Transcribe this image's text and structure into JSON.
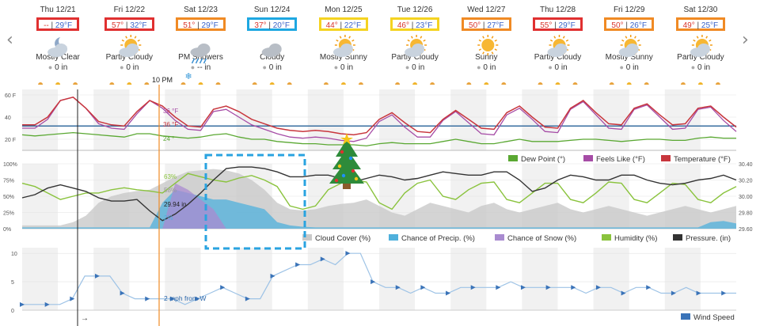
{
  "nav": {
    "prev_arrow": "‹",
    "next_arrow": "›"
  },
  "current_time_label": "10 PM",
  "days": [
    {
      "date": "Thu 12/21",
      "hi": "--",
      "lo": "29°F",
      "condition": "Mostly Clear",
      "precip": "0 in",
      "icon": "moon-cloud-icon",
      "box": "#e03030"
    },
    {
      "date": "Fri 12/22",
      "hi": "57°",
      "lo": "32°F",
      "condition": "Partly Cloudy",
      "precip": "0 in",
      "icon": "sun-cloud-icon",
      "box": "#e03030"
    },
    {
      "date": "Sat 12/23",
      "hi": "51°",
      "lo": "29°F",
      "condition": "PM Showers",
      "precip": "-- in",
      "icon": "rain-cloud-icon",
      "box": "#f08a24"
    },
    {
      "date": "Sun 12/24",
      "hi": "37°",
      "lo": "20°F",
      "condition": "Cloudy",
      "precip": "0 in",
      "icon": "cloud-icon",
      "box": "#1ea7e1"
    },
    {
      "date": "Mon 12/25",
      "hi": "44°",
      "lo": "22°F",
      "condition": "Mostly Sunny",
      "precip": "0 in",
      "icon": "sun-cloud-icon",
      "box": "#f5d321"
    },
    {
      "date": "Tue 12/26",
      "hi": "46°",
      "lo": "23°F",
      "condition": "Partly Cloudy",
      "precip": "0 in",
      "icon": "sun-cloud-icon",
      "box": "#f5d321"
    },
    {
      "date": "Wed 12/27",
      "hi": "50°",
      "lo": "27°F",
      "condition": "Sunny",
      "precip": "0 in",
      "icon": "sun-icon",
      "box": "#f08a24"
    },
    {
      "date": "Thu 12/28",
      "hi": "55°",
      "lo": "29°F",
      "condition": "Partly Cloudy",
      "precip": "0 in",
      "icon": "sun-cloud-icon",
      "box": "#e03030"
    },
    {
      "date": "Fri 12/29",
      "hi": "50°",
      "lo": "26°F",
      "condition": "Mostly Sunny",
      "precip": "0 in",
      "icon": "sun-cloud-icon",
      "box": "#f08a24"
    },
    {
      "date": "Sat 12/30",
      "hi": "49°",
      "lo": "25°F",
      "condition": "Partly Cloudy",
      "precip": "0 in",
      "icon": "sun-cloud-icon",
      "box": "#f08a24"
    }
  ],
  "chart_data": [
    {
      "type": "line",
      "title": "Temperature panel",
      "ylabel": "°F",
      "ylim": [
        10,
        65
      ],
      "y_ticks": [
        "60 F",
        "40",
        "20 F"
      ],
      "x_hours_total": 240,
      "current_readout": {
        "feels_like": "36 °F",
        "temperature": "36 °F",
        "dew_point": "24 °"
      },
      "legend": [
        "Dew Point (°)",
        "Feels Like (°F)",
        "Temperature (°F)"
      ],
      "colors": {
        "dew": "#5aa832",
        "feels": "#a64ca6",
        "temp": "#c8363d",
        "ref": "#3a6fa0"
      },
      "reference_line": 32,
      "series": [
        {
          "name": "Temperature",
          "values": [
            33,
            33,
            40,
            55,
            58,
            48,
            36,
            33,
            32,
            45,
            55,
            50,
            40,
            32,
            31,
            47,
            50,
            45,
            38,
            34,
            30,
            28,
            27,
            28,
            27,
            25,
            24,
            26,
            38,
            44,
            35,
            27,
            26,
            38,
            46,
            38,
            30,
            29,
            44,
            50,
            40,
            31,
            30,
            48,
            55,
            44,
            34,
            33,
            48,
            52,
            42,
            33,
            34,
            48,
            50,
            40,
            31
          ]
        },
        {
          "name": "Feels Like",
          "values": [
            30,
            30,
            38,
            55,
            58,
            48,
            34,
            30,
            29,
            43,
            55,
            48,
            37,
            29,
            28,
            45,
            47,
            40,
            33,
            29,
            25,
            22,
            21,
            22,
            21,
            19,
            18,
            21,
            36,
            42,
            31,
            22,
            22,
            37,
            45,
            35,
            25,
            24,
            42,
            48,
            38,
            27,
            26,
            47,
            54,
            42,
            30,
            29,
            47,
            51,
            40,
            29,
            30,
            47,
            49,
            37,
            27
          ]
        },
        {
          "name": "Dew Point",
          "values": [
            24,
            23,
            24,
            25,
            26,
            25,
            24,
            23,
            22,
            25,
            25,
            23,
            22,
            21,
            22,
            24,
            25,
            22,
            20,
            20,
            18,
            17,
            16,
            16,
            15,
            15,
            15,
            14,
            16,
            17,
            16,
            16,
            16,
            18,
            20,
            18,
            16,
            16,
            18,
            20,
            18,
            18,
            18,
            19,
            20,
            20,
            19,
            18,
            19,
            20,
            20,
            19,
            19,
            21,
            22,
            21,
            21
          ]
        }
      ]
    },
    {
      "type": "area",
      "title": "Cloud / Precip / Humidity / Pressure panel",
      "ylabel": "%",
      "ylim": [
        0,
        100
      ],
      "y_ticks": [
        "100%",
        "75%",
        "50%",
        "25%",
        "0%"
      ],
      "y2_ticks": [
        "30.40",
        "30.20",
        "30.00",
        "29.80",
        "29.60"
      ],
      "y2lim": [
        29.6,
        30.4
      ],
      "current_readout": {
        "humidity": "63%",
        "cloud": "58%",
        "pressure": "29.94 in",
        "precip": "2%"
      },
      "legend": [
        "Cloud Cover (%)",
        "Chance of Precip. (%)",
        "Chance of Snow (%)",
        "Humidity (%)",
        "Pressure. (in)"
      ],
      "colors": {
        "cloud": "#c9c9c9",
        "precip": "#4fb0dc",
        "snow": "#a98bd0",
        "humidity": "#8ac33d",
        "pressure": "#333333"
      },
      "series": [
        {
          "name": "Cloud Cover",
          "values": [
            5,
            5,
            5,
            5,
            10,
            20,
            40,
            50,
            55,
            58,
            60,
            70,
            80,
            88,
            90,
            92,
            90,
            85,
            75,
            60,
            40,
            30,
            28,
            30,
            35,
            38,
            40,
            45,
            35,
            25,
            20,
            30,
            40,
            35,
            30,
            25,
            35,
            40,
            30,
            25,
            30,
            35,
            40,
            30,
            25,
            30,
            35,
            30,
            25,
            20,
            25,
            30,
            35,
            30,
            25,
            30,
            35
          ]
        },
        {
          "name": "Chance of Precip.",
          "values": [
            2,
            2,
            2,
            2,
            2,
            2,
            2,
            2,
            2,
            2,
            2,
            40,
            60,
            55,
            50,
            45,
            45,
            40,
            35,
            30,
            10,
            5,
            3,
            2,
            2,
            2,
            2,
            2,
            2,
            2,
            2,
            2,
            2,
            2,
            2,
            2,
            2,
            2,
            2,
            2,
            2,
            2,
            2,
            2,
            2,
            2,
            2,
            2,
            2,
            2,
            2,
            2,
            2,
            2,
            10,
            12,
            8
          ]
        },
        {
          "name": "Chance of Snow",
          "values": [
            0,
            0,
            0,
            0,
            0,
            0,
            0,
            0,
            0,
            0,
            0,
            0,
            70,
            60,
            45,
            30,
            0,
            0,
            0,
            0,
            0,
            0,
            0,
            0,
            0,
            0,
            0,
            0,
            0,
            0,
            0,
            0,
            0,
            0,
            0,
            0,
            0,
            0,
            0,
            0,
            0,
            0,
            0,
            0,
            0,
            0,
            0,
            0,
            0,
            0,
            0,
            0,
            0,
            0,
            0,
            0,
            0
          ]
        },
        {
          "name": "Humidity",
          "values": [
            70,
            65,
            55,
            45,
            50,
            55,
            55,
            60,
            63,
            60,
            58,
            55,
            70,
            85,
            80,
            75,
            72,
            78,
            82,
            75,
            65,
            35,
            30,
            35,
            60,
            70,
            75,
            72,
            40,
            30,
            55,
            70,
            75,
            50,
            45,
            60,
            70,
            72,
            45,
            40,
            55,
            70,
            70,
            45,
            40,
            55,
            72,
            70,
            45,
            40,
            55,
            70,
            68,
            45,
            40,
            55,
            65
          ]
        },
        {
          "name": "Pressure",
          "values": [
            29.98,
            30.02,
            30.1,
            30.14,
            30.1,
            30.06,
            29.98,
            29.94,
            29.94,
            29.96,
            29.82,
            29.7,
            29.78,
            29.9,
            30.04,
            30.2,
            30.34,
            30.36,
            30.36,
            30.34,
            30.3,
            30.24,
            30.24,
            30.26,
            30.26,
            30.22,
            30.18,
            30.22,
            30.26,
            30.24,
            30.2,
            30.22,
            30.26,
            30.3,
            30.28,
            30.26,
            30.26,
            30.3,
            30.3,
            30.2,
            30.06,
            30.1,
            30.2,
            30.26,
            30.24,
            30.2,
            30.2,
            30.26,
            30.26,
            30.2,
            30.16,
            30.14,
            30.16,
            30.2,
            30.22,
            30.26,
            30.2
          ]
        }
      ]
    },
    {
      "type": "line",
      "title": "Wind panel",
      "ylabel": "mph",
      "ylim": [
        0,
        11
      ],
      "y_ticks": [
        "10",
        "5",
        "0"
      ],
      "current_readout": {
        "wind": "2 mph from W"
      },
      "legend": [
        "Wind Speed"
      ],
      "colors": {
        "wind": "#3a73b8"
      },
      "series": [
        {
          "name": "Wind Speed",
          "values": [
            1,
            1,
            1,
            1,
            2,
            6,
            6,
            6,
            3,
            2,
            2,
            2,
            2,
            1,
            2,
            3,
            4,
            3,
            2,
            2,
            6,
            7,
            8,
            8,
            9,
            8,
            10,
            10,
            5,
            4,
            4,
            3,
            4,
            3,
            3,
            4,
            4,
            4,
            4,
            5,
            4,
            4,
            4,
            4,
            4,
            3,
            4,
            4,
            3,
            4,
            4,
            3,
            3,
            4,
            3,
            3,
            3,
            3
          ]
        }
      ]
    }
  ],
  "current_hour_index": 10,
  "christmas_tree": "christmas-tree"
}
